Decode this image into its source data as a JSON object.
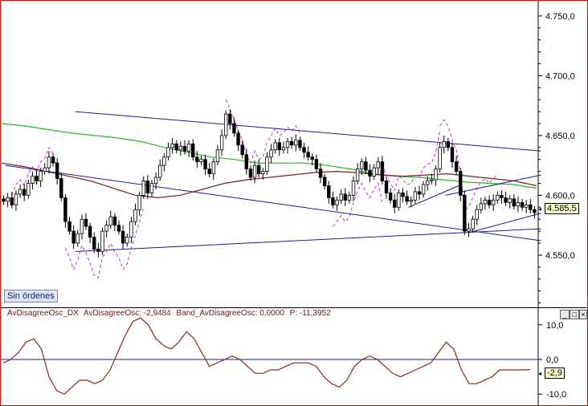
{
  "chart_data": [
    {
      "type": "candlestick",
      "ylim": [
        4507,
        4762
      ],
      "y_ticks": [
        "4.750,0",
        "4.700,0",
        "4.650,0",
        "4.600,0",
        "4.550,0"
      ],
      "y_tick_values": [
        4750,
        4700,
        4650,
        4600,
        4550
      ],
      "last_price_label": "4.585,5",
      "last_price": 4585.5,
      "orders_label": "Sin órdenes",
      "colors": {
        "up_candle": "#ffffff",
        "down_candle": "#000000",
        "ma_green": "#22bb22",
        "ma_brown": "#7a2020",
        "band_magenta": "#cc33cc",
        "trendlines": "#1a1a9a",
        "border": "#e00000"
      },
      "closes": [
        4595,
        4598,
        4592,
        4601,
        4605,
        4600,
        4610,
        4616,
        4612,
        4620,
        4623,
        4632,
        4627,
        4614,
        4598,
        4578,
        4570,
        4560,
        4568,
        4580,
        4574,
        4565,
        4555,
        4553,
        4570,
        4575,
        4582,
        4575,
        4570,
        4560,
        4565,
        4578,
        4588,
        4600,
        4612,
        4602,
        4610,
        4615,
        4625,
        4632,
        4640,
        4643,
        4638,
        4641,
        4637,
        4643,
        4632,
        4628,
        4630,
        4622,
        4618,
        4628,
        4638,
        4650,
        4668,
        4660,
        4652,
        4642,
        4634,
        4622,
        4615,
        4625,
        4618,
        4620,
        4632,
        4638,
        4644,
        4638,
        4640,
        4645,
        4642,
        4646,
        4640,
        4636,
        4632,
        4630,
        4622,
        4615,
        4608,
        4598,
        4592,
        4596,
        4601,
        4596,
        4600,
        4612,
        4622,
        4628,
        4621,
        4616,
        4623,
        4628,
        4612,
        4602,
        4596,
        4590,
        4602,
        4599,
        4595,
        4596,
        4603,
        4601,
        4609,
        4612,
        4613,
        4622,
        4640,
        4645,
        4640,
        4628,
        4620,
        4600,
        4570,
        4572,
        4580,
        4588,
        4593,
        4596,
        4592,
        4596,
        4600,
        4598,
        4594,
        4597,
        4591,
        4594,
        4590,
        4592,
        4588,
        4585.5
      ],
      "ma_green": [
        4660,
        4658,
        4655,
        4652,
        4650,
        4648,
        4645,
        4640,
        4636,
        4632,
        4630,
        4627,
        4627,
        4627,
        4625,
        4622,
        4618,
        4616,
        4615,
        4613,
        4611,
        4610,
        4609,
        4606
      ],
      "ma_brown": [
        4627,
        4624,
        4620,
        4616,
        4612,
        4606,
        4600,
        4598,
        4600,
        4605,
        4610,
        4613,
        4615,
        4617,
        4619,
        4620,
        4619,
        4617,
        4616,
        4617,
        4618,
        4616,
        4614,
        4612,
        4608
      ],
      "trendlines": [
        {
          "from": [
            44,
            4553
          ],
          "to": [
            335,
            4572
          ]
        },
        {
          "from": [
            0,
            4625
          ],
          "to": [
            335,
            4562
          ]
        },
        {
          "from": [
            44,
            4670
          ],
          "to": [
            335,
            4637
          ]
        },
        {
          "from": [
            252,
            4590
          ],
          "to": [
            280,
            4608
          ]
        },
        {
          "from": [
            295,
            4570
          ],
          "to": [
            335,
            4585
          ]
        },
        {
          "from": [
            275,
            4600
          ],
          "to": [
            335,
            4617
          ]
        }
      ]
    },
    {
      "type": "line",
      "header": [
        "AvDisagreeOsc_DX",
        "AvDisagreeOsc: -2,9484",
        "Band_AvDisagreeOsc: 0,0000",
        "P: -11,3952"
      ],
      "ylim": [
        -12.5,
        12.5
      ],
      "y_ticks": [
        "10,0",
        "0,0",
        "-10,0"
      ],
      "y_tick_values": [
        10,
        0,
        -10
      ],
      "last_value_label": "-2,9",
      "last_value": -2.9484,
      "band": 0,
      "values": [
        -1,
        0,
        2,
        5,
        6,
        3,
        -5,
        -9,
        -10,
        -8,
        -6,
        -6,
        -7,
        -6,
        -3,
        2,
        7,
        11,
        12,
        10,
        6,
        4,
        3,
        5,
        8,
        6,
        2,
        -2,
        -1,
        0,
        1,
        0,
        -2,
        -4,
        -4,
        -3,
        -3,
        -2,
        -1,
        -1,
        -1,
        -2,
        -5,
        -7,
        -8,
        -6,
        -2,
        0,
        1,
        0,
        -2,
        -4,
        -5,
        -4,
        -3,
        -2,
        -1,
        2,
        5,
        3,
        -3,
        -7,
        -7,
        -6,
        -5,
        -3,
        -3,
        -3,
        -3,
        -2.9
      ]
    }
  ]
}
